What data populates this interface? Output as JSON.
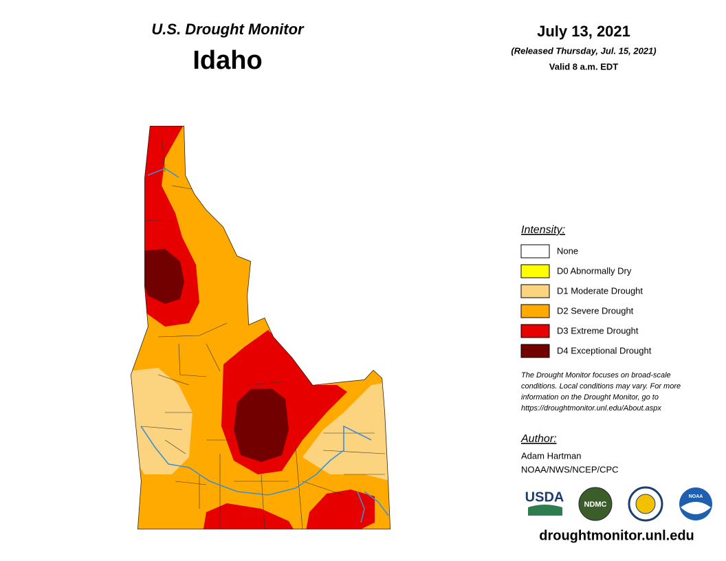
{
  "header": {
    "title": "U.S. Drought Monitor",
    "region": "Idaho"
  },
  "date": {
    "date": "July 13, 2021",
    "released": "(Released Thursday, Jul. 15, 2021)",
    "valid": "Valid 8 a.m. EDT"
  },
  "legend": {
    "title": "Intensity:",
    "items": [
      {
        "label": "None",
        "color": "#ffffff"
      },
      {
        "label": "D0 Abnormally Dry",
        "color": "#ffff00"
      },
      {
        "label": "D1 Moderate Drought",
        "color": "#fcd37f"
      },
      {
        "label": "D2 Severe Drought",
        "color": "#ffaa00"
      },
      {
        "label": "D3 Extreme Drought",
        "color": "#e60000"
      },
      {
        "label": "D4 Exceptional Drought",
        "color": "#730000"
      }
    ]
  },
  "note": [
    "The Drought Monitor focuses on broad-scale",
    "conditions. Local conditions may vary. For more",
    "information on the Drought Monitor, go to",
    "https://droughtmonitor.unl.edu/About.aspx"
  ],
  "author": {
    "title": "Author:",
    "name": "Adam Hartman",
    "org": "NOAA/NWS/NCEP/CPC"
  },
  "logos": [
    "USDA",
    "NDMC",
    "NOAA"
  ],
  "url": "droughtmonitor.unl.edu"
}
